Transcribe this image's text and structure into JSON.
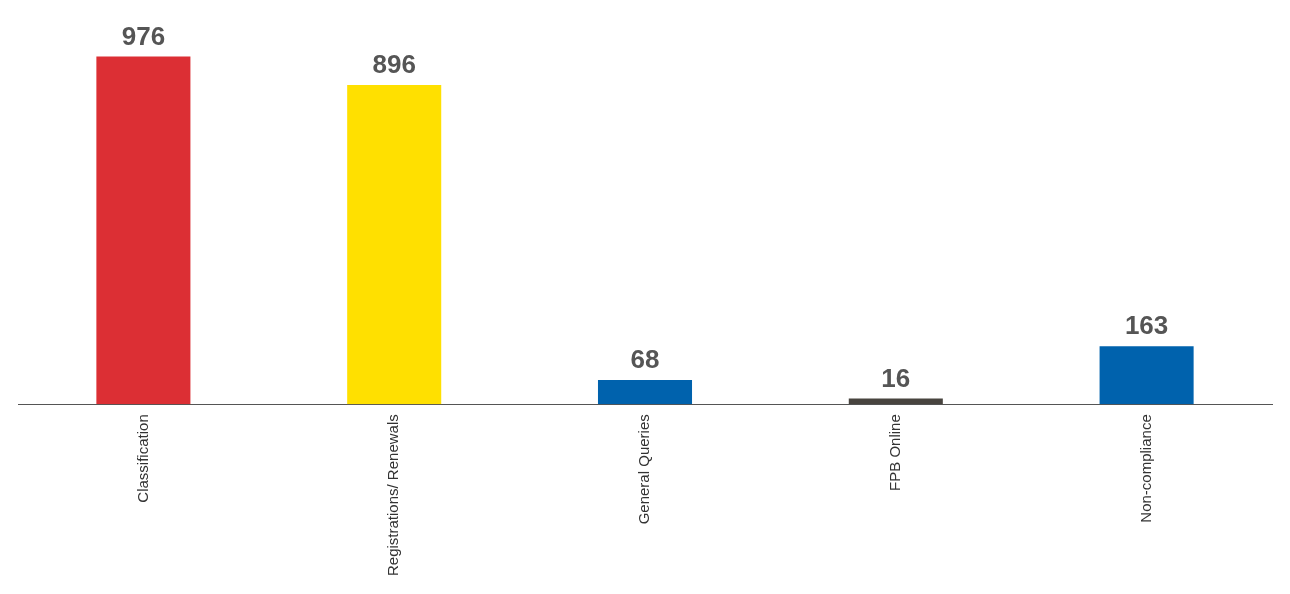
{
  "chart_data": {
    "type": "bar",
    "categories": [
      "Classification",
      "Registrations/ Renewals",
      "General Queries",
      "FPB Online",
      "Non-compliance"
    ],
    "values": [
      976,
      896,
      68,
      16,
      163
    ],
    "colors": [
      "#dc2f34",
      "#ffe000",
      "#0062ad",
      "#48443f",
      "#0062ad"
    ],
    "data_labels": true,
    "grid": false,
    "legend": false
  }
}
